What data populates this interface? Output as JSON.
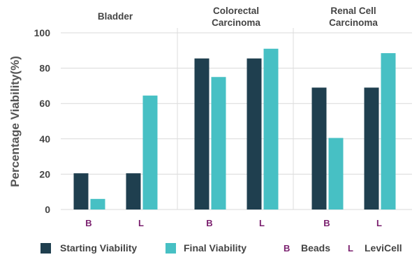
{
  "chart_data": {
    "type": "bar",
    "ylabel": "Percentage Viability(%)",
    "ylim": [
      0,
      100
    ],
    "yticks": [
      0,
      20,
      40,
      60,
      80,
      100
    ],
    "grid": true,
    "groups": [
      {
        "title_lines": [
          "Bladder"
        ],
        "categories": [
          "B",
          "L"
        ]
      },
      {
        "title_lines": [
          "Colorectal",
          "Carcinoma"
        ],
        "categories": [
          "B",
          "L"
        ]
      },
      {
        "title_lines": [
          "Renal Cell",
          "Carcinoma"
        ],
        "categories": [
          "B",
          "L"
        ]
      }
    ],
    "series": [
      {
        "name": "Starting Viability",
        "color": "#1f3f4f",
        "values": [
          [
            20.5,
            20.5
          ],
          [
            85.5,
            85.5
          ],
          [
            69,
            69
          ]
        ]
      },
      {
        "name": "Final Viability",
        "color": "#47c0c4",
        "values": [
          [
            6,
            64.5
          ],
          [
            75,
            91
          ],
          [
            40.5,
            88.5
          ]
        ]
      }
    ],
    "legend_position": "bottom",
    "abbreviations": [
      {
        "letter": "B",
        "text": "Beads"
      },
      {
        "letter": "L",
        "text": "LeviCell"
      }
    ]
  }
}
